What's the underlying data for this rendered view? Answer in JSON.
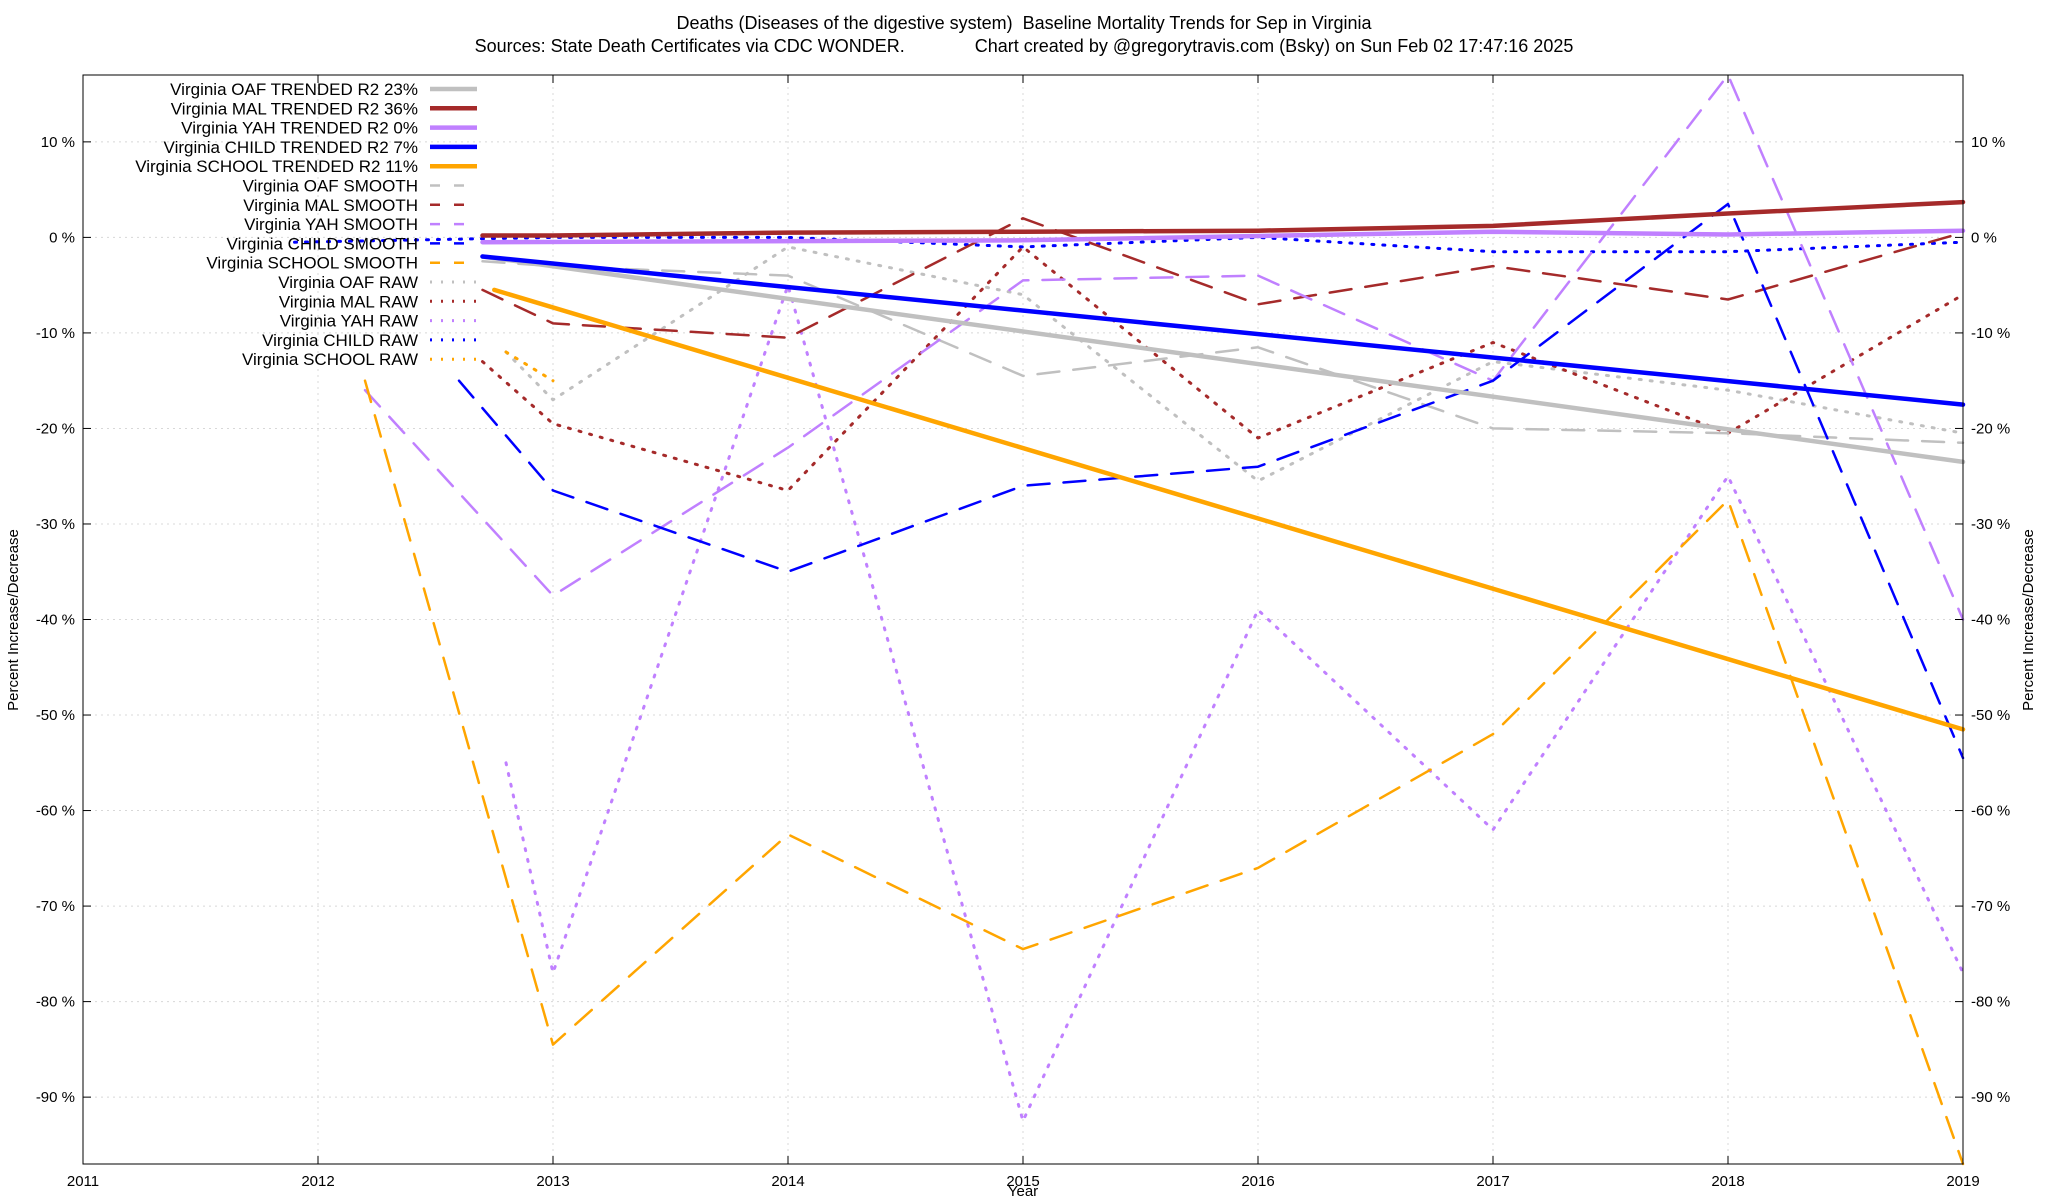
{
  "header": {
    "title": "Deaths (Diseases of the digestive system)  Baseline Mortality Trends for Sep in Virginia",
    "subtitle": "Sources: State Death Certificates via CDC WONDER.              Chart created by @gregorytravis.com (Bsky) on Sun Feb 02 17:47:16 2025"
  },
  "chart_data": {
    "type": "line",
    "xlabel": "Year",
    "ylabel": "Percent Increase/Decrease",
    "y2label": "Percent Increase/Decrease",
    "xlim": [
      2011,
      2019
    ],
    "ylim": [
      -97,
      17
    ],
    "x_ticks": [
      "2011",
      "2012",
      "2013",
      "2014",
      "2015",
      "2016",
      "2017",
      "2018",
      "2019"
    ],
    "y_ticks": [
      {
        "v": 10,
        "label": "10 %"
      },
      {
        "v": 0,
        "label": "0 %"
      },
      {
        "v": -10,
        "label": "-10 %"
      },
      {
        "v": -20,
        "label": "-20 %"
      },
      {
        "v": -30,
        "label": "-30 %"
      },
      {
        "v": -40,
        "label": "-40 %"
      },
      {
        "v": -50,
        "label": "-50 %"
      },
      {
        "v": -60,
        "label": "-60 %"
      },
      {
        "v": -70,
        "label": "-70 %"
      },
      {
        "v": -80,
        "label": "-80 %"
      },
      {
        "v": -90,
        "label": "-90 %"
      }
    ],
    "grid": true,
    "legend_position": "top-left",
    "series": [
      {
        "name": "Virginia OAF TRENDED R2  23%",
        "style": "trend",
        "color": "#c0c0c0",
        "x": [
          2012.7,
          2019
        ],
        "y": [
          -2,
          -23.5
        ]
      },
      {
        "name": "Virginia MAL TRENDED R2  36%",
        "style": "trend",
        "color": "#a52a2a",
        "x": [
          2012.7,
          2013,
          2014,
          2015,
          2016,
          2017,
          2018,
          2019
        ],
        "y": [
          0.2,
          0.2,
          0.5,
          0.6,
          0.7,
          1.2,
          2.5,
          3.7
        ]
      },
      {
        "name": "Virginia YAH TRENDED R2   0%",
        "style": "trend",
        "color": "#c080ff",
        "x": [
          2012.7,
          2015,
          2017,
          2018,
          2019
        ],
        "y": [
          -0.5,
          -0.3,
          0.6,
          0.3,
          0.7
        ]
      },
      {
        "name": "Virginia CHILD TRENDED R2   7%",
        "style": "trend",
        "color": "#0000ff",
        "x": [
          2012.7,
          2019
        ],
        "y": [
          -2,
          -17.5
        ]
      },
      {
        "name": "Virginia SCHOOL TRENDED R2  11%",
        "style": "trend",
        "color": "#ffa500",
        "x": [
          2012.75,
          2019
        ],
        "y": [
          -5.5,
          -51.5
        ]
      },
      {
        "name": "Virginia OAF SMOOTH",
        "style": "smooth",
        "color": "#c0c0c0",
        "x": [
          2012.7,
          2013,
          2014,
          2015,
          2016,
          2017,
          2018,
          2019
        ],
        "y": [
          -2.5,
          -3,
          -4,
          -14.5,
          -11.5,
          -20,
          -20.5,
          -21.5
        ]
      },
      {
        "name": "Virginia MAL SMOOTH",
        "style": "smooth",
        "color": "#a52a2a",
        "x": [
          2012.7,
          2013,
          2014,
          2015,
          2016,
          2017,
          2018,
          2019
        ],
        "y": [
          -5.5,
          -9,
          -10.5,
          2,
          -7,
          -3,
          -6.5,
          0.5
        ]
      },
      {
        "name": "Virginia YAH SMOOTH",
        "style": "smooth",
        "color": "#c080ff",
        "x": [
          2012.2,
          2013,
          2014,
          2015,
          2016,
          2017,
          2018,
          2019
        ],
        "y": [
          -16,
          -37.5,
          -22,
          -4.5,
          -4,
          -15,
          17,
          -40
        ]
      },
      {
        "name": "Virginia CHILD SMOOTH",
        "style": "smooth",
        "color": "#0000ff",
        "x": [
          2012.6,
          2013,
          2014,
          2015,
          2016,
          2017,
          2018,
          2019
        ],
        "y": [
          -15,
          -26.5,
          -35,
          -26,
          -24,
          -15,
          3.5,
          -54.5
        ]
      },
      {
        "name": "Virginia SCHOOL SMOOTH",
        "style": "smooth",
        "color": "#ffa500",
        "x": [
          2012.2,
          2013,
          2014,
          2015,
          2016,
          2017,
          2018,
          2019
        ],
        "y": [
          -15,
          -84.5,
          -62.5,
          -74.5,
          -66,
          -52,
          -27.5,
          -97
        ]
      },
      {
        "name": "Virginia OAF RAW",
        "style": "raw",
        "color": "#c0c0c0",
        "x": [
          2012.8,
          2013,
          2014,
          2015,
          2016,
          2017,
          2018,
          2019
        ],
        "y": [
          -12,
          -17,
          -1,
          -6,
          -25.5,
          -13,
          -16,
          -20.5
        ]
      },
      {
        "name": "Virginia MAL RAW",
        "style": "raw",
        "color": "#a52a2a",
        "x": [
          2012.7,
          2013,
          2014,
          2015,
          2016,
          2017,
          2018,
          2019
        ],
        "y": [
          -13,
          -19.5,
          -26.5,
          -1,
          -21,
          -11,
          -20.5,
          -6
        ]
      },
      {
        "name": "Virginia YAH RAW",
        "style": "raw",
        "color": "#c080ff",
        "x": [
          2012.8,
          2013,
          2014,
          2015,
          2016,
          2017,
          2018,
          2019
        ],
        "y": [
          -55,
          -77,
          -5,
          -92.5,
          -39,
          -62,
          -25,
          -77
        ]
      },
      {
        "name": "Virginia CHILD RAW",
        "style": "raw",
        "color": "#0000ff",
        "x": [
          2011.9,
          2013,
          2014,
          2015,
          2016,
          2017,
          2018,
          2019
        ],
        "y": [
          -0.5,
          0,
          0,
          -1,
          0,
          -1.5,
          -1.5,
          -0.5
        ]
      },
      {
        "name": "Virginia SCHOOL RAW",
        "style": "raw",
        "color": "#ffa500",
        "x": [
          2012.8,
          2013
        ],
        "y": [
          -12,
          -15
        ]
      }
    ]
  }
}
